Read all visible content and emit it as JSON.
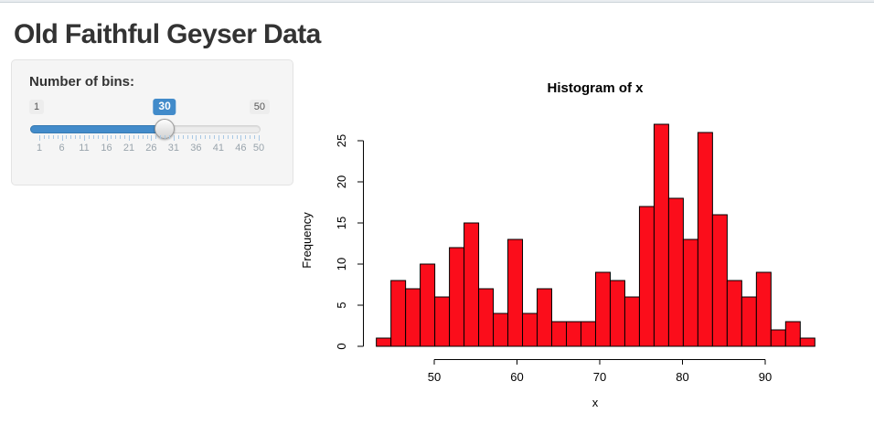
{
  "header": {
    "title": "Old Faithful Geyser Data"
  },
  "sidebar": {
    "slider": {
      "label": "Number of bins:",
      "min": 1,
      "max": 50,
      "value": 30,
      "min_label": "1",
      "max_label": "50",
      "value_label": "30",
      "grid_labels": [
        1,
        6,
        11,
        16,
        21,
        26,
        31,
        36,
        41,
        46,
        50
      ],
      "accent_color": "#428bca"
    }
  },
  "chart_data": {
    "type": "bar",
    "subtype": "histogram",
    "title": "Histogram of x",
    "xlabel": "x",
    "ylabel": "Frequency",
    "bin_start": 43,
    "bin_end": 96,
    "bin_count": 30,
    "counts": [
      1,
      8,
      7,
      10,
      6,
      12,
      15,
      7,
      4,
      13,
      4,
      7,
      3,
      3,
      3,
      9,
      8,
      6,
      17,
      27,
      18,
      13,
      26,
      16,
      8,
      6,
      9,
      2,
      3,
      1
    ],
    "x_ticks": [
      50,
      60,
      70,
      80,
      90
    ],
    "y_ticks": [
      0,
      5,
      10,
      15,
      20,
      25
    ],
    "ylim": [
      0,
      27
    ],
    "grid": false,
    "legend": "none",
    "bar_fill": "#FB0D1B",
    "bar_border": "#000000",
    "axis_color": "#000000"
  }
}
